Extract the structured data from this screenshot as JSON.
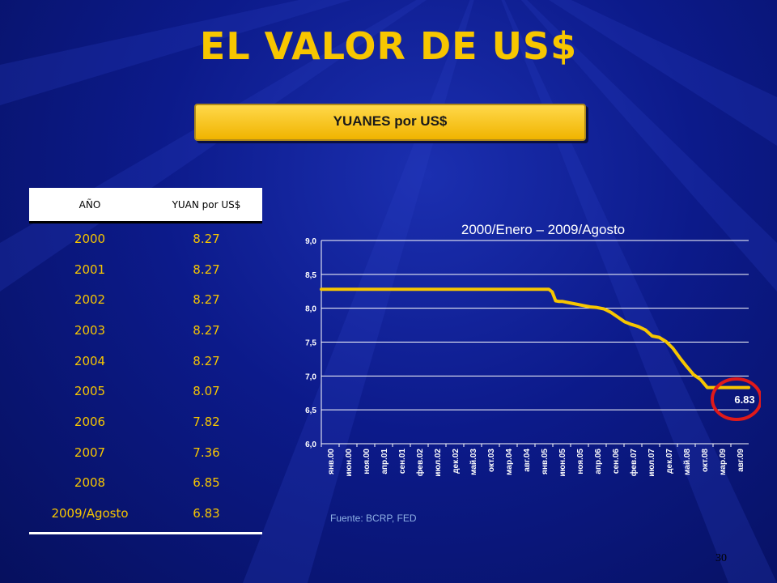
{
  "slide": {
    "title": "EL VALOR DE US$",
    "banner": "YUANES por US$",
    "source": "Fuente: BCRP, FED",
    "page_number": "30"
  },
  "table": {
    "headers": [
      "AÑO",
      "YUAN por US$"
    ],
    "rows": [
      [
        "2000",
        "8.27"
      ],
      [
        "2001",
        "8.27"
      ],
      [
        "2002",
        "8.27"
      ],
      [
        "2003",
        "8.27"
      ],
      [
        "2004",
        "8.27"
      ],
      [
        "2005",
        "8.07"
      ],
      [
        "2006",
        "7.82"
      ],
      [
        "2007",
        "7.36"
      ],
      [
        "2008",
        "6.85"
      ],
      [
        "2009/Agosto",
        "6.83"
      ]
    ]
  },
  "colors": {
    "accent": "#f7c600",
    "circle": "#e01a1a"
  },
  "chart_data": {
    "type": "line",
    "title": "2000/Enero – 2009/Agosto",
    "ylim": [
      6.0,
      9.0
    ],
    "yticks": [
      "9,0",
      "8,5",
      "8,0",
      "7,5",
      "7,0",
      "6,5",
      "6,0"
    ],
    "ytick_values": [
      9.0,
      8.5,
      8.0,
      7.5,
      7.0,
      6.5,
      6.0
    ],
    "x_tick_labels": [
      "янв.00",
      "июн.00",
      "ноя.00",
      "апр.01",
      "сен.01",
      "фев.02",
      "июл.02",
      "дек.02",
      "май.03",
      "окт.03",
      "мар.04",
      "авг.04",
      "янв.05",
      "июн.05",
      "ноя.05",
      "апр.06",
      "сен.06",
      "фев.07",
      "июл.07",
      "дек.07",
      "май.08",
      "окт.08",
      "мар.09",
      "авг.09"
    ],
    "series": [
      {
        "values": [
          [
            0,
            8.28
          ],
          [
            66,
            8.28
          ],
          [
            67,
            8.24
          ],
          [
            68,
            8.11
          ],
          [
            69,
            8.1
          ],
          [
            70,
            8.1
          ],
          [
            72,
            8.08
          ],
          [
            74,
            8.06
          ],
          [
            76,
            8.04
          ],
          [
            78,
            8.02
          ],
          [
            80,
            8.01
          ],
          [
            82,
            7.99
          ],
          [
            84,
            7.94
          ],
          [
            86,
            7.87
          ],
          [
            88,
            7.8
          ],
          [
            90,
            7.76
          ],
          [
            92,
            7.73
          ],
          [
            94,
            7.68
          ],
          [
            96,
            7.59
          ],
          [
            98,
            7.57
          ],
          [
            100,
            7.51
          ],
          [
            102,
            7.41
          ],
          [
            104,
            7.27
          ],
          [
            106,
            7.14
          ],
          [
            108,
            7.02
          ],
          [
            110,
            6.95
          ],
          [
            112,
            6.83
          ],
          [
            114,
            6.83
          ],
          [
            116,
            6.83
          ],
          [
            118,
            6.83
          ],
          [
            120,
            6.83
          ],
          [
            122,
            6.83
          ],
          [
            124,
            6.83
          ]
        ]
      }
    ],
    "annotation": "6.83",
    "grid": true
  }
}
